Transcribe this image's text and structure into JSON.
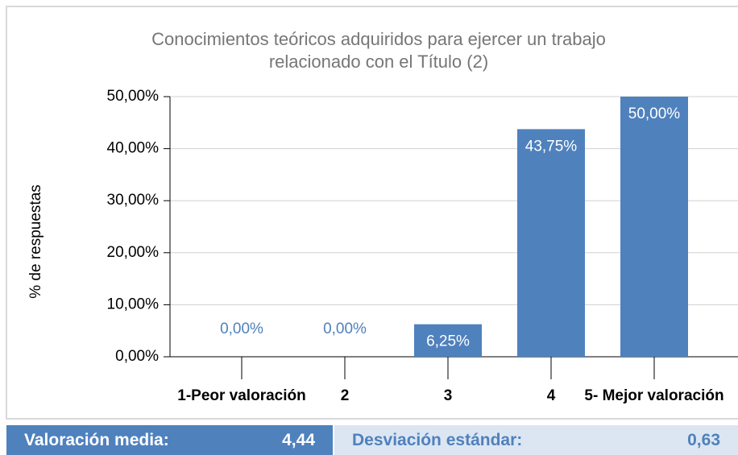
{
  "chart_data": {
    "type": "bar",
    "title": [
      "Conocimientos teóricos  adquiridos para ejercer un trabajo",
      "relacionado con el Título (2)"
    ],
    "y_label": "% de respuestas",
    "categories": [
      "1-Peor valoración",
      "2",
      "3",
      "4",
      "5- Mejor valoración"
    ],
    "values": [
      0,
      0,
      6.25,
      43.75,
      50
    ],
    "value_labels": [
      "0,00%",
      "0,00%",
      "6,25%",
      "43,75%",
      "50,00%"
    ],
    "color": "#4f81bd",
    "ylim": [
      0,
      50
    ],
    "yticks": [
      {
        "value": 0,
        "label": "0,00%"
      },
      {
        "value": 10,
        "label": "10,00%"
      },
      {
        "value": 20,
        "label": "20,00%"
      },
      {
        "value": 30,
        "label": "30,00%"
      },
      {
        "value": 40,
        "label": "40,00%"
      },
      {
        "value": 50,
        "label": "50,00%"
      }
    ],
    "grid": true
  },
  "footer": {
    "mean_label": "Valoración media:",
    "mean_value": "4,44",
    "sd_label": "Desviación estándar:",
    "sd_value": "0,63"
  }
}
